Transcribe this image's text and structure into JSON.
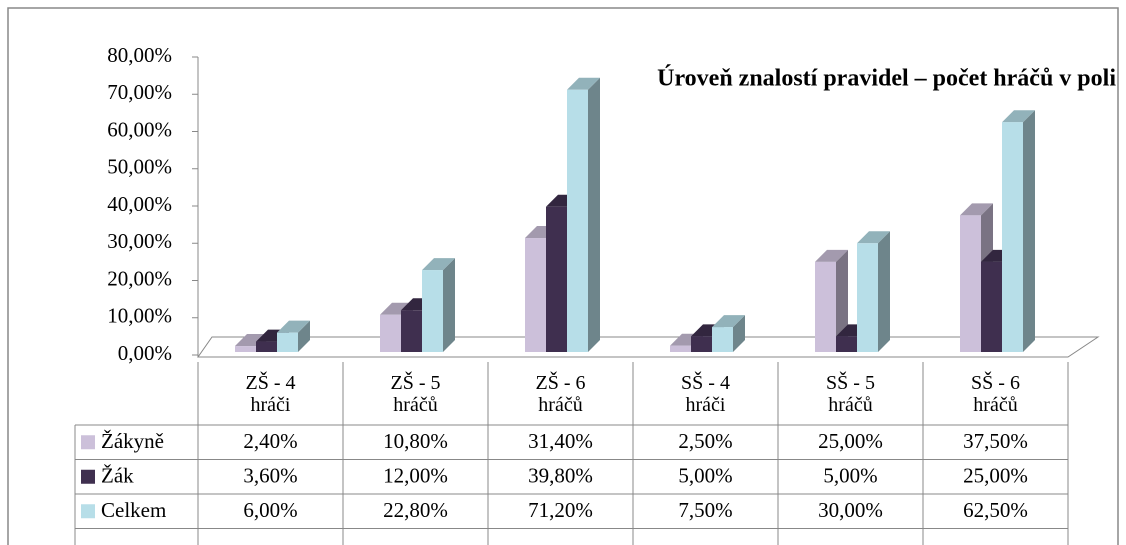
{
  "chart_data": {
    "type": "bar3d",
    "title": "Úroveň znalostí pravidel – počet hráčů v poli",
    "categories": [
      "ZŠ - 4 hráči",
      "ZŠ - 5 hráčů",
      "ZŠ - 6 hráčů",
      "SŠ - 4 hráči",
      "SŠ - 5 hráčů",
      "SŠ - 6 hráčů"
    ],
    "series": [
      {
        "name": "Žákyně",
        "color": "#ccc0da",
        "values": [
          2.4,
          10.8,
          31.4,
          2.5,
          25.0,
          37.5
        ],
        "value_labels": [
          "2,40%",
          "10,80%",
          "31,40%",
          "2,50%",
          "25,00%",
          "37,50%"
        ]
      },
      {
        "name": "Žák",
        "color": "#3f2f4f",
        "values": [
          3.6,
          12.0,
          39.8,
          5.0,
          5.0,
          25.0
        ],
        "value_labels": [
          "3,60%",
          "12,00%",
          "39,80%",
          "5,00%",
          "5,00%",
          "25,00%"
        ]
      },
      {
        "name": "Celkem",
        "color": "#b7dee8",
        "values": [
          6.0,
          22.8,
          71.2,
          7.5,
          30.0,
          62.5
        ],
        "value_labels": [
          "6,00%",
          "22,80%",
          "71,20%",
          "7,50%",
          "30,00%",
          "62,50%"
        ]
      }
    ],
    "ylim": [
      0,
      80
    ],
    "yticks": [
      {
        "value": 0,
        "label": "0,00%"
      },
      {
        "value": 10,
        "label": "10,00%"
      },
      {
        "value": 20,
        "label": "20,00%"
      },
      {
        "value": 30,
        "label": "30,00%"
      },
      {
        "value": 40,
        "label": "40,00%"
      },
      {
        "value": 50,
        "label": "50,00%"
      },
      {
        "value": 60,
        "label": "60,00%"
      },
      {
        "value": 70,
        "label": "70,00%"
      },
      {
        "value": 80,
        "label": "80,00%"
      }
    ],
    "legend": "table"
  }
}
